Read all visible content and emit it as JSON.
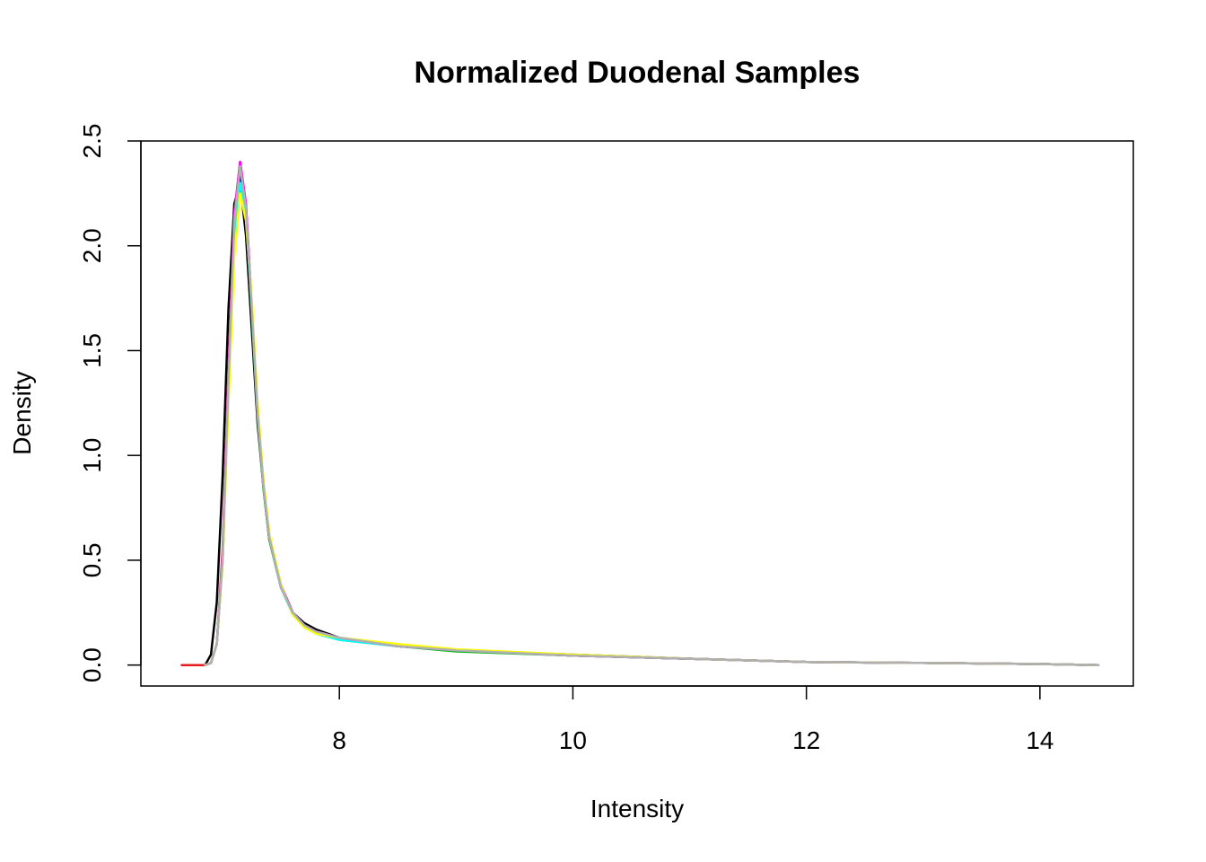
{
  "chart_data": {
    "type": "line",
    "title": "Normalized Duodenal Samples",
    "xlabel": "Intensity",
    "ylabel": "Density",
    "xlim": [
      6.3,
      14.8
    ],
    "ylim": [
      -0.1,
      2.5
    ],
    "x_ticks": [
      8,
      10,
      12,
      14
    ],
    "x_tick_labels": [
      "8",
      "10",
      "12",
      "14"
    ],
    "y_ticks": [
      0.0,
      0.5,
      1.0,
      1.5,
      2.0,
      2.5
    ],
    "y_tick_labels": [
      "0.0",
      "0.5",
      "1.0",
      "1.5",
      "2.0",
      "2.5"
    ],
    "grid": false,
    "legend": "none",
    "series": [
      {
        "color": "#000000",
        "x": [
          6.85,
          6.9,
          6.95,
          7.0,
          7.05,
          7.1,
          7.15,
          7.2,
          7.25,
          7.3,
          7.35,
          7.4,
          7.5,
          7.6,
          7.7,
          7.8,
          8.0,
          8.5,
          9.0,
          10.0,
          11.0,
          12.0,
          13.0,
          14.0,
          14.5
        ],
        "y": [
          0.0,
          0.05,
          0.3,
          0.9,
          1.7,
          2.2,
          2.3,
          2.05,
          1.6,
          1.15,
          0.85,
          0.6,
          0.38,
          0.25,
          0.2,
          0.17,
          0.13,
          0.09,
          0.07,
          0.045,
          0.03,
          0.015,
          0.01,
          0.005,
          0.0
        ]
      },
      {
        "color": "#e41a1c",
        "x": [
          6.65,
          6.75,
          6.85,
          6.9,
          6.95,
          7.0,
          7.05,
          7.1,
          7.15,
          7.2,
          7.25,
          7.3,
          7.35,
          7.4,
          7.5,
          7.6,
          7.7,
          7.8,
          8.0,
          8.5,
          9.0,
          10.0,
          11.0,
          12.0,
          13.0,
          14.0,
          14.5
        ],
        "y": [
          0.0,
          0.0,
          0.0,
          0.01,
          0.1,
          0.55,
          1.4,
          2.15,
          2.4,
          2.2,
          1.7,
          1.2,
          0.85,
          0.6,
          0.37,
          0.25,
          0.19,
          0.16,
          0.13,
          0.09,
          0.07,
          0.045,
          0.03,
          0.015,
          0.01,
          0.005,
          0.0
        ]
      },
      {
        "color": "#00c000",
        "x": [
          6.85,
          6.9,
          6.95,
          7.0,
          7.05,
          7.1,
          7.15,
          7.2,
          7.25,
          7.3,
          7.35,
          7.4,
          7.5,
          7.6,
          7.7,
          7.8,
          8.0,
          8.5,
          9.0,
          10.0,
          11.0,
          12.0,
          13.0,
          14.0,
          14.5
        ],
        "y": [
          0.0,
          0.01,
          0.1,
          0.5,
          1.35,
          2.1,
          2.38,
          2.18,
          1.68,
          1.18,
          0.84,
          0.6,
          0.37,
          0.25,
          0.18,
          0.15,
          0.12,
          0.09,
          0.065,
          0.045,
          0.03,
          0.015,
          0.01,
          0.005,
          0.0
        ]
      },
      {
        "color": "#0000ff",
        "x": [
          6.85,
          6.9,
          6.95,
          7.0,
          7.05,
          7.1,
          7.15,
          7.2,
          7.25,
          7.3,
          7.35,
          7.4,
          7.5,
          7.6,
          7.7,
          7.8,
          8.0,
          8.5,
          9.0,
          10.0,
          11.0,
          12.0,
          13.0,
          14.0,
          14.5
        ],
        "y": [
          0.0,
          0.01,
          0.1,
          0.5,
          1.3,
          2.05,
          2.33,
          2.15,
          1.72,
          1.22,
          0.87,
          0.62,
          0.38,
          0.25,
          0.19,
          0.16,
          0.13,
          0.09,
          0.07,
          0.05,
          0.03,
          0.015,
          0.01,
          0.005,
          0.0
        ]
      },
      {
        "color": "#00ffff",
        "x": [
          6.85,
          6.9,
          6.95,
          7.0,
          7.05,
          7.1,
          7.15,
          7.2,
          7.25,
          7.3,
          7.35,
          7.4,
          7.5,
          7.6,
          7.7,
          7.8,
          8.0,
          8.5,
          9.0,
          10.0,
          11.0,
          12.0,
          13.0,
          14.0,
          14.5
        ],
        "y": [
          0.0,
          0.01,
          0.1,
          0.5,
          1.3,
          2.05,
          2.3,
          2.15,
          1.7,
          1.2,
          0.86,
          0.61,
          0.37,
          0.24,
          0.18,
          0.15,
          0.12,
          0.09,
          0.07,
          0.045,
          0.03,
          0.015,
          0.01,
          0.005,
          0.0
        ]
      },
      {
        "color": "#ff00ff",
        "x": [
          6.85,
          6.9,
          6.95,
          7.0,
          7.05,
          7.1,
          7.15,
          7.2,
          7.25,
          7.3,
          7.35,
          7.4,
          7.5,
          7.6,
          7.7,
          7.8,
          8.0,
          8.5,
          9.0,
          10.0,
          11.0,
          12.0,
          13.0,
          14.0,
          14.5
        ],
        "y": [
          0.0,
          0.01,
          0.1,
          0.52,
          1.38,
          2.15,
          2.4,
          2.2,
          1.72,
          1.2,
          0.86,
          0.61,
          0.38,
          0.25,
          0.19,
          0.16,
          0.13,
          0.09,
          0.07,
          0.045,
          0.03,
          0.015,
          0.01,
          0.005,
          0.0
        ]
      },
      {
        "color": "#ffff00",
        "x": [
          6.85,
          6.9,
          6.95,
          7.0,
          7.05,
          7.1,
          7.15,
          7.2,
          7.25,
          7.3,
          7.35,
          7.4,
          7.5,
          7.6,
          7.7,
          7.8,
          8.0,
          8.5,
          9.0,
          10.0,
          11.0,
          12.0,
          13.0,
          14.0,
          14.5
        ],
        "y": [
          0.0,
          0.01,
          0.1,
          0.48,
          1.25,
          1.95,
          2.25,
          2.12,
          1.75,
          1.25,
          0.88,
          0.63,
          0.38,
          0.24,
          0.18,
          0.15,
          0.13,
          0.1,
          0.075,
          0.05,
          0.03,
          0.015,
          0.01,
          0.005,
          0.0
        ]
      },
      {
        "color": "#b0b0b0",
        "x": [
          6.85,
          6.9,
          6.95,
          7.0,
          7.05,
          7.1,
          7.15,
          7.2,
          7.25,
          7.3,
          7.35,
          7.4,
          7.5,
          7.6,
          7.7,
          7.8,
          8.0,
          8.5,
          9.0,
          10.0,
          11.0,
          12.0,
          13.0,
          14.0,
          14.5
        ],
        "y": [
          0.0,
          0.01,
          0.1,
          0.5,
          1.35,
          2.12,
          2.38,
          2.18,
          1.7,
          1.2,
          0.86,
          0.61,
          0.37,
          0.25,
          0.19,
          0.16,
          0.13,
          0.09,
          0.07,
          0.045,
          0.03,
          0.015,
          0.01,
          0.005,
          0.0
        ]
      }
    ]
  }
}
